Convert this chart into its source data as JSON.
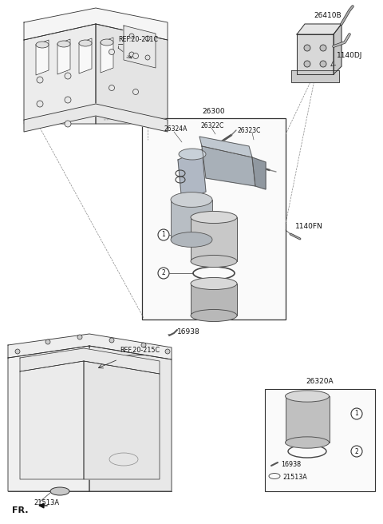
{
  "bg_color": "#ffffff",
  "fig_width": 4.8,
  "fig_height": 6.56,
  "dpi": 100,
  "labels": {
    "ref_20_211c": "REF.20-211C",
    "ref_20_215c": "REF.20-215C",
    "n26300": "26300",
    "n26324a": "26324A",
    "n26322c": "26322C",
    "n26323c": "26323C",
    "n26410b": "26410B",
    "n1140dj": "1140DJ",
    "n1140fn": "1140FN",
    "n16938": "16938",
    "n21513a": "21513A",
    "n26320a": "26320A",
    "fr": "FR."
  }
}
